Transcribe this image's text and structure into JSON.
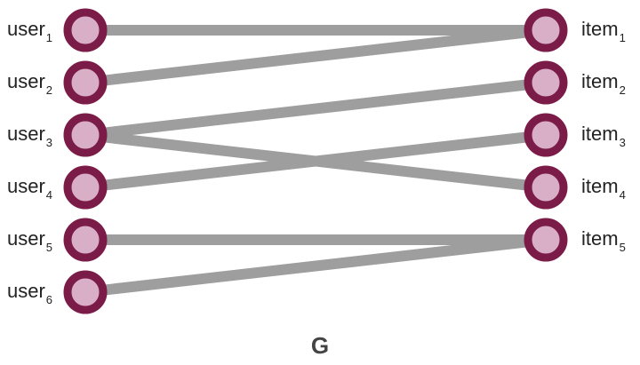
{
  "graph": {
    "name": "G",
    "colors": {
      "node_ring": "#7B1B48",
      "node_fill": "#D9AFC8",
      "edge": "#9E9E9E",
      "text": "#222222"
    },
    "users": [
      {
        "id": "u1",
        "name": "user",
        "sub": "1"
      },
      {
        "id": "u2",
        "name": "user",
        "sub": "2"
      },
      {
        "id": "u3",
        "name": "user",
        "sub": "3"
      },
      {
        "id": "u4",
        "name": "user",
        "sub": "4"
      },
      {
        "id": "u5",
        "name": "user",
        "sub": "5"
      },
      {
        "id": "u6",
        "name": "user",
        "sub": "6"
      }
    ],
    "items": [
      {
        "id": "i1",
        "name": "item",
        "sub": "1"
      },
      {
        "id": "i2",
        "name": "item",
        "sub": "2"
      },
      {
        "id": "i3",
        "name": "item",
        "sub": "3"
      },
      {
        "id": "i4",
        "name": "item",
        "sub": "4"
      },
      {
        "id": "i5",
        "name": "item",
        "sub": "5"
      }
    ],
    "edges": [
      [
        "u1",
        "i1"
      ],
      [
        "u2",
        "i1"
      ],
      [
        "u3",
        "i2"
      ],
      [
        "u3",
        "i4"
      ],
      [
        "u4",
        "i3"
      ],
      [
        "u5",
        "i5"
      ],
      [
        "u6",
        "i5"
      ]
    ]
  }
}
